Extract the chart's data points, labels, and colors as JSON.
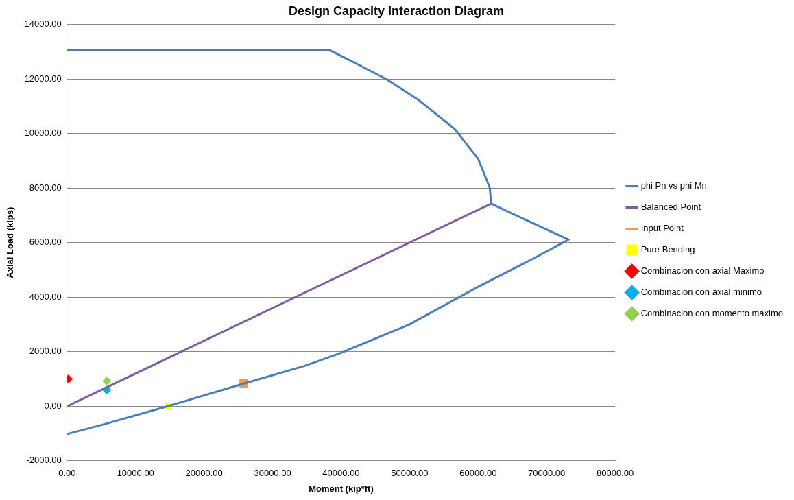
{
  "chart_data": {
    "type": "line",
    "title": "Design Capacity Interaction Diagram",
    "xlabel": "Moment (kip*ft)",
    "ylabel": "Axial Load (kips)",
    "xlim": [
      0,
      80000
    ],
    "ylim": [
      -2000,
      14000
    ],
    "xticks": [
      {
        "value": 0,
        "label": "0.00"
      },
      {
        "value": 10000,
        "label": "10000.00"
      },
      {
        "value": 20000,
        "label": "20000.00"
      },
      {
        "value": 30000,
        "label": "30000.00"
      },
      {
        "value": 40000,
        "label": "40000.00"
      },
      {
        "value": 50000,
        "label": "50000.00"
      },
      {
        "value": 60000,
        "label": "60000.00"
      },
      {
        "value": 70000,
        "label": "70000.00"
      },
      {
        "value": 80000,
        "label": "80000.00"
      }
    ],
    "yticks": [
      {
        "value": -2000,
        "label": "-2000.00"
      },
      {
        "value": 0,
        "label": "0.00"
      },
      {
        "value": 2000,
        "label": "2000.00"
      },
      {
        "value": 4000,
        "label": "4000.00"
      },
      {
        "value": 6000,
        "label": "6000.00"
      },
      {
        "value": 8000,
        "label": "8000.00"
      },
      {
        "value": 10000,
        "label": "10000.00"
      },
      {
        "value": 12000,
        "label": "12000.00"
      },
      {
        "value": 14000,
        "label": "14000.00"
      }
    ],
    "grid": "y",
    "legend": "right",
    "series": [
      {
        "name": "phi Pn vs phi Mn",
        "type": "line",
        "marker": "none",
        "color": "#4a7ebb",
        "x": [
          0,
          37700,
          38400,
          46500,
          51200,
          56600,
          60000,
          61700,
          61900,
          66800,
          73200,
          68100,
          60000,
          49900,
          39800,
          34700,
          25800,
          14700,
          5300,
          0
        ],
        "values": [
          13060,
          13060,
          13050,
          12010,
          11250,
          10160,
          9070,
          8010,
          7430,
          6850,
          6110,
          5420,
          4380,
          2990,
          1940,
          1480,
          830,
          0,
          -670,
          -1020
        ]
      },
      {
        "name": "Balanced Point",
        "type": "line",
        "marker": "none",
        "color": "#7d5fa0",
        "x": [
          0,
          61900
        ],
        "values": [
          0,
          7430
        ]
      },
      {
        "name": "Input Point",
        "type": "line",
        "marker": "square",
        "color": "#f79646",
        "x": [
          25800
        ],
        "values": [
          850
        ]
      },
      {
        "name": "Pure Bending",
        "type": "scatter",
        "marker": "square",
        "color": "#ffff00",
        "x": [
          14700
        ],
        "values": [
          0
        ]
      },
      {
        "name": "Combinacion con axial Maximo",
        "type": "scatter",
        "marker": "diamond",
        "color": "#ff0000",
        "x": [
          200
        ],
        "values": [
          1000
        ]
      },
      {
        "name": "Combinacion con axial minimo",
        "type": "scatter",
        "marker": "diamond",
        "color": "#00b0f0",
        "x": [
          5800
        ],
        "values": [
          590
        ]
      },
      {
        "name": "Combinacion con momento maximo",
        "type": "scatter",
        "marker": "diamond",
        "color": "#92d050",
        "x": [
          5800
        ],
        "values": [
          920
        ]
      }
    ]
  }
}
